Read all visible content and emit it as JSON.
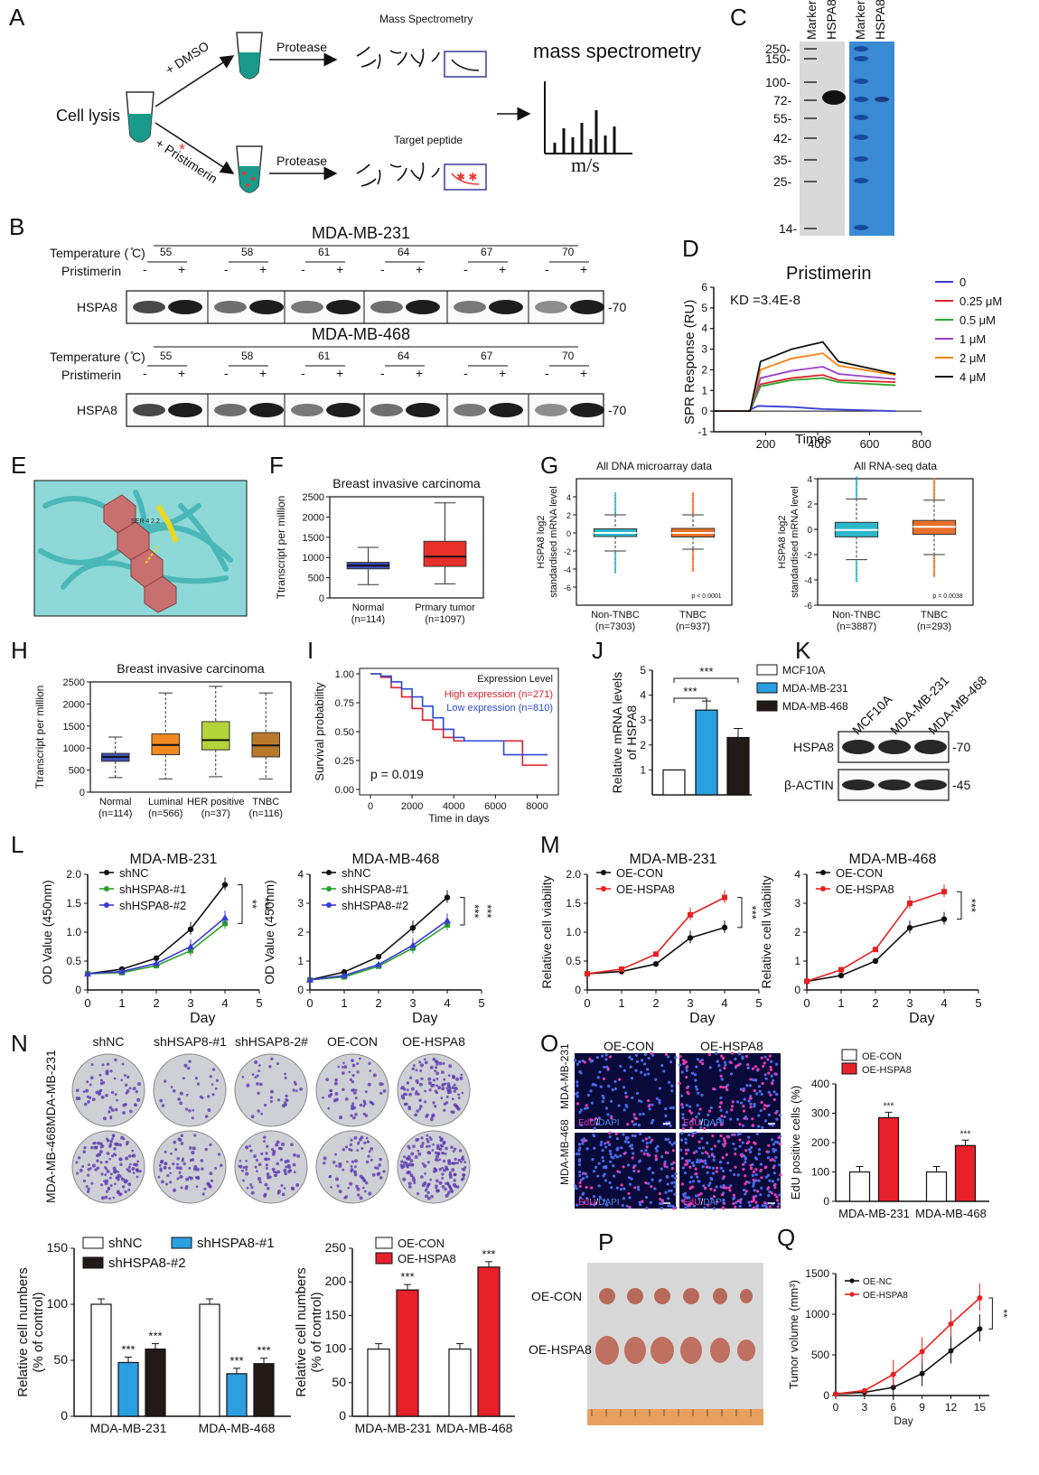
{
  "panels": {
    "A": "A",
    "B": "B",
    "C": "C",
    "D": "D",
    "E": "E",
    "F": "F",
    "G": "G",
    "H": "H",
    "I": "I",
    "J": "J",
    "K": "K",
    "L": "L",
    "M": "M",
    "N": "N",
    "O": "O",
    "P": "P",
    "Q": "Q"
  },
  "panelA": {
    "cell_lysis": "Cell lysis",
    "dmso": "+ DMSO",
    "pristimerin": "+ Pristimerin",
    "protease1": "Protease",
    "protease2": "Protease",
    "mass_spec_small": "Mass Spectrometry",
    "target_peptide": "Target peptide",
    "mass_spec_big": "mass spectrometry",
    "ms_axis": "m/s"
  },
  "panelB": {
    "cell1": "MDA-MB-231",
    "cell2": "MDA-MB-468",
    "temp_label": "Temperature ( ̊C)",
    "prist_label": "Pristimerin",
    "temps": [
      "55",
      "58",
      "61",
      "64",
      "67",
      "70"
    ],
    "minus": "-",
    "plus": "+",
    "protein": "HSPA8",
    "mw": "-70"
  },
  "panelC": {
    "lane1": "Marker",
    "lane2": "HSPA8",
    "lane3": "Marker",
    "lane4": "HSPA8",
    "ladder": [
      "250-",
      "150-",
      "100-",
      "72-",
      "55-",
      "42-",
      "35-",
      "25-",
      "14-"
    ]
  },
  "chart_data": [
    {
      "panel": "D",
      "type": "line",
      "title": "Pristimerin",
      "annotation": "KD =3.4E-8",
      "xlabel": "Times",
      "ylabel": "SPR Response (RU)",
      "xlim": [
        0,
        800
      ],
      "ylim": [
        -1,
        6
      ],
      "xticks": [
        "200",
        "400",
        "600",
        "800"
      ],
      "yticks": [
        "-1",
        "0",
        "1",
        "2",
        "3",
        "4",
        "5",
        "6"
      ],
      "series": [
        {
          "name": "0",
          "color": "#3b3bd6",
          "x": [
            0,
            130,
            170,
            300,
            420,
            700
          ],
          "y": [
            0,
            0,
            0.25,
            0.2,
            0.1,
            0
          ]
        },
        {
          "name": "0.25 μM",
          "color": "#e0202a",
          "x": [
            0,
            140,
            180,
            300,
            420,
            480,
            700
          ],
          "y": [
            0,
            0,
            1.3,
            1.6,
            1.75,
            1.5,
            1.4
          ]
        },
        {
          "name": "0.5 μM",
          "color": "#2aa82a",
          "x": [
            0,
            140,
            180,
            300,
            420,
            480,
            700
          ],
          "y": [
            0,
            0,
            1.2,
            1.5,
            1.6,
            1.4,
            1.25
          ]
        },
        {
          "name": "1 μM",
          "color": "#9b3ec9",
          "x": [
            0,
            140,
            180,
            300,
            420,
            480,
            700
          ],
          "y": [
            0,
            0,
            1.6,
            1.95,
            2.15,
            1.8,
            1.55
          ]
        },
        {
          "name": "2 μM",
          "color": "#ff7f0e",
          "x": [
            0,
            140,
            180,
            300,
            420,
            480,
            700
          ],
          "y": [
            0,
            0,
            2.0,
            2.55,
            2.8,
            2.2,
            1.75
          ]
        },
        {
          "name": "4 μM",
          "color": "#111111",
          "x": [
            0,
            140,
            180,
            300,
            420,
            480,
            700
          ],
          "y": [
            0,
            0,
            2.4,
            3.0,
            3.35,
            2.4,
            1.8
          ]
        }
      ]
    },
    {
      "panel": "F",
      "type": "box",
      "title": "Breast invasive carcinoma",
      "ylabel": "Ttranscript per million",
      "ylim": [
        0,
        2500
      ],
      "yticks": [
        "0",
        "500",
        "1000",
        "1500",
        "2000",
        "2500"
      ],
      "categories": [
        "Normal\n(n=114)",
        "Prmary tumor\n(n=1097)"
      ],
      "boxes": [
        {
          "min": 330,
          "q1": 720,
          "median": 800,
          "q3": 880,
          "max": 1250,
          "color": "#3f4fb8"
        },
        {
          "min": 350,
          "q1": 780,
          "median": 1020,
          "q3": 1400,
          "max": 2350,
          "color": "#e8302a"
        }
      ]
    },
    {
      "panel": "G1",
      "type": "box",
      "title": "All DNA microarray data",
      "ylabel": "HSPA8 log2\nstandardised mRNA level",
      "ylim": [
        -8,
        6
      ],
      "yticks": [
        "-6",
        "-4",
        "-2",
        "0",
        "2",
        "4"
      ],
      "categories": [
        "Non-TNBC\n(n=7303)",
        "TNBC\n(n=937)"
      ],
      "pvalue": "p < 0.0001",
      "boxes": [
        {
          "min": -2,
          "q1": -0.4,
          "median": 0,
          "q3": 0.45,
          "max": 2,
          "color": "#2ab7c9"
        },
        {
          "min": -1.8,
          "q1": -0.45,
          "median": 0,
          "q3": 0.5,
          "max": 2,
          "color": "#e8702a"
        }
      ]
    },
    {
      "panel": "G2",
      "type": "box",
      "title": "All RNA-seq data",
      "ylabel": "HSPA8 log2\nstandardised mRNA level",
      "ylim": [
        -6,
        4
      ],
      "yticks": [
        "-6",
        "-4",
        "-2",
        "0",
        "2",
        "4"
      ],
      "categories": [
        "Non-TNBC\n(n=3887)",
        "TNBC\n(n=293)"
      ],
      "pvalue": "p = 0.0038",
      "boxes": [
        {
          "min": -2.4,
          "q1": -0.6,
          "median": -0.05,
          "q3": 0.55,
          "max": 2.4,
          "color": "#2ab7c9"
        },
        {
          "min": -2,
          "q1": -0.4,
          "median": 0.2,
          "q3": 0.7,
          "max": 2.3,
          "color": "#e8702a"
        }
      ]
    },
    {
      "panel": "H",
      "type": "box",
      "title": "Breast invasive carcinoma",
      "ylabel": "Ttranscript per million",
      "ylim": [
        0,
        2500
      ],
      "yticks": [
        "0",
        "500",
        "1000",
        "1500",
        "2000",
        "2500"
      ],
      "categories": [
        "Normal\n(n=114)",
        "Luminal\n(n=566)",
        "HER positive\n(n=37)",
        "TNBC\n(n=116)"
      ],
      "boxes": [
        {
          "min": 330,
          "q1": 700,
          "median": 800,
          "q3": 880,
          "max": 1250,
          "color": "#3f4fb8"
        },
        {
          "min": 300,
          "q1": 850,
          "median": 1070,
          "q3": 1320,
          "max": 2250,
          "color": "#f08a20"
        },
        {
          "min": 350,
          "q1": 960,
          "median": 1180,
          "q3": 1600,
          "max": 2400,
          "color": "#b5d33a"
        },
        {
          "min": 300,
          "q1": 800,
          "median": 1060,
          "q3": 1350,
          "max": 2250,
          "color": "#b87a2a"
        }
      ]
    },
    {
      "panel": "I",
      "type": "line",
      "xlabel": "Time in days",
      "ylabel": "Survival probability",
      "xlim": [
        0,
        8500
      ],
      "ylim": [
        0,
        1
      ],
      "xticks": [
        "0",
        "2000",
        "4000",
        "6000",
        "8000"
      ],
      "yticks": [
        "0.00",
        "0.25",
        "0.50",
        "0.75",
        "1.00"
      ],
      "legend_title": "Expression Level",
      "pvalue": "p = 0.019",
      "series": [
        {
          "name": "High expression (n=271)",
          "color": "#e0202a",
          "x": [
            0,
            500,
            1000,
            1500,
            2000,
            2500,
            3000,
            3500,
            4000,
            4500,
            6300,
            7300,
            7400,
            8500
          ],
          "y": [
            1,
            0.97,
            0.88,
            0.8,
            0.7,
            0.6,
            0.52,
            0.45,
            0.42,
            0.42,
            0.42,
            0.21,
            0.21,
            0.21
          ]
        },
        {
          "name": "Low expression (n=810)",
          "color": "#2a4ad6",
          "x": [
            0,
            500,
            1000,
            1500,
            2000,
            2500,
            3000,
            3500,
            4000,
            4500,
            6300,
            6400,
            7500,
            8500
          ],
          "y": [
            1,
            0.98,
            0.93,
            0.87,
            0.8,
            0.72,
            0.62,
            0.52,
            0.45,
            0.42,
            0.42,
            0.3,
            0.3,
            0.3
          ]
        }
      ]
    },
    {
      "panel": "J",
      "type": "bar",
      "ylabel": "Relative mRNA levels\nof HSPA8",
      "ylim": [
        0,
        5
      ],
      "yticks": [
        "1",
        "2",
        "3",
        "4",
        "5"
      ],
      "categories": [
        "MCF10A",
        "MDA-MB-231",
        "MDA-MB-468"
      ],
      "values": [
        1,
        3.4,
        2.3
      ],
      "colors": [
        "#ffffff",
        "#2aa0e0",
        "#231a18"
      ],
      "sig": [
        "***",
        "***"
      ]
    },
    {
      "panel": "L1",
      "type": "line",
      "title": "MDA-MB-231",
      "xlabel": "Day",
      "ylabel": "OD Value (450nm)",
      "xlim": [
        0,
        5
      ],
      "ylim": [
        0,
        2
      ],
      "xticks": [
        "0",
        "1",
        "2",
        "3",
        "4",
        "5"
      ],
      "yticks": [
        "0",
        "0.5",
        "1.0",
        "1.5",
        "2.0"
      ],
      "sig": [
        "**",
        "***"
      ],
      "series": [
        {
          "name": "shNC",
          "color": "#111111",
          "x": [
            0,
            1,
            2,
            3,
            4
          ],
          "y": [
            0.28,
            0.36,
            0.55,
            1.05,
            1.82
          ]
        },
        {
          "name": "shHSPA8-#1",
          "color": "#2aa02a",
          "x": [
            0,
            1,
            2,
            3,
            4
          ],
          "y": [
            0.28,
            0.3,
            0.42,
            0.68,
            1.15
          ]
        },
        {
          "name": "shHSPA8-#2",
          "color": "#3a3ad6",
          "x": [
            0,
            1,
            2,
            3,
            4
          ],
          "y": [
            0.28,
            0.32,
            0.46,
            0.75,
            1.25
          ]
        }
      ]
    },
    {
      "panel": "L2",
      "type": "line",
      "title": "MDA-MB-468",
      "xlabel": "Day",
      "ylabel": "OD Value (450nm)",
      "xlim": [
        0,
        5
      ],
      "ylim": [
        0,
        4
      ],
      "xticks": [
        "0",
        "1",
        "2",
        "3",
        "4",
        "5"
      ],
      "yticks": [
        "0",
        "1",
        "2",
        "3",
        "4"
      ],
      "sig": [
        "***",
        "***"
      ],
      "series": [
        {
          "name": "shNC",
          "color": "#111111",
          "x": [
            0,
            1,
            2,
            3,
            4
          ],
          "y": [
            0.35,
            0.62,
            1.15,
            2.15,
            3.2
          ]
        },
        {
          "name": "shHSPA8-#1",
          "color": "#2aa02a",
          "x": [
            0,
            1,
            2,
            3,
            4
          ],
          "y": [
            0.35,
            0.45,
            0.82,
            1.45,
            2.25
          ]
        },
        {
          "name": "shHSPA8-#2",
          "color": "#3a3ad6",
          "x": [
            0,
            1,
            2,
            3,
            4
          ],
          "y": [
            0.35,
            0.5,
            0.88,
            1.55,
            2.4
          ]
        }
      ]
    },
    {
      "panel": "M1",
      "type": "line",
      "title": "MDA-MB-231",
      "xlabel": "Day",
      "ylabel": "Relative cell viability",
      "xlim": [
        0,
        5
      ],
      "ylim": [
        0,
        2
      ],
      "xticks": [
        "0",
        "1",
        "2",
        "3",
        "4",
        "5"
      ],
      "yticks": [
        "0",
        "0.5",
        "1.0",
        "1.5",
        "2.0"
      ],
      "sig": [
        "***"
      ],
      "series": [
        {
          "name": "OE-CON",
          "color": "#111111",
          "x": [
            0,
            1,
            2,
            3,
            4
          ],
          "y": [
            0.28,
            0.32,
            0.45,
            0.9,
            1.08
          ]
        },
        {
          "name": "OE-HSPA8",
          "color": "#e82020",
          "x": [
            0,
            1,
            2,
            3,
            4
          ],
          "y": [
            0.28,
            0.36,
            0.62,
            1.3,
            1.6
          ]
        }
      ]
    },
    {
      "panel": "M2",
      "type": "line",
      "title": "MDA-MB-468",
      "xlabel": "Day",
      "ylabel": "Relative cell viability",
      "xlim": [
        0,
        5
      ],
      "ylim": [
        0,
        4
      ],
      "xticks": [
        "0",
        "1",
        "2",
        "3",
        "4",
        "5"
      ],
      "yticks": [
        "0",
        "1",
        "2",
        "3",
        "4"
      ],
      "sig": [
        "***"
      ],
      "series": [
        {
          "name": "OE-CON",
          "color": "#111111",
          "x": [
            0,
            1,
            2,
            3,
            4
          ],
          "y": [
            0.3,
            0.5,
            1.0,
            2.15,
            2.45
          ]
        },
        {
          "name": "OE-HSPA8",
          "color": "#e82020",
          "x": [
            0,
            1,
            2,
            3,
            4
          ],
          "y": [
            0.3,
            0.7,
            1.4,
            3.0,
            3.4
          ]
        }
      ]
    },
    {
      "panel": "O",
      "type": "bar",
      "ylabel": "EdU positive cells (%)",
      "ylim": [
        0,
        400
      ],
      "yticks": [
        "0",
        "100",
        "200",
        "300",
        "400"
      ],
      "categories": [
        "MDA-MB-231",
        "MDA-MB-468"
      ],
      "series": [
        {
          "name": "OE-CON",
          "color": "#ffffff",
          "values": [
            100,
            100
          ]
        },
        {
          "name": "OE-HSPA8",
          "color": "#e8202a",
          "values": [
            285,
            190
          ]
        }
      ],
      "sig": [
        "***",
        "***"
      ]
    },
    {
      "panel": "N1",
      "type": "bar",
      "ylabel": "Relative cell numbers\n(% of control)",
      "ylim": [
        0,
        150
      ],
      "yticks": [
        "0",
        "50",
        "100",
        "150"
      ],
      "categories": [
        "MDA-MB-231",
        "MDA-MB-468"
      ],
      "series": [
        {
          "name": "shNC",
          "color": "#ffffff",
          "values": [
            100,
            100
          ]
        },
        {
          "name": "shHSPA8-#1",
          "color": "#2aa0e0",
          "values": [
            48,
            38
          ]
        },
        {
          "name": "shHSPA8-#2",
          "color": "#231a18",
          "values": [
            60,
            47
          ]
        }
      ],
      "sig": [
        "***",
        "***",
        "***",
        "***"
      ]
    },
    {
      "panel": "N2",
      "type": "bar",
      "ylabel": "Relative cell numbers\n(% of control)",
      "ylim": [
        0,
        250
      ],
      "yticks": [
        "0",
        "50",
        "100",
        "150",
        "200",
        "250"
      ],
      "categories": [
        "MDA-MB-231",
        "MDA-MB-468"
      ],
      "series": [
        {
          "name": "OE-CON",
          "color": "#ffffff",
          "values": [
            100,
            100
          ]
        },
        {
          "name": "OE-HSPA8",
          "color": "#e8202a",
          "values": [
            188,
            222
          ]
        }
      ],
      "sig": [
        "***",
        "***"
      ]
    },
    {
      "panel": "Q",
      "type": "line",
      "xlabel": "Day",
      "ylabel": "Tumor volume (mm³)",
      "xlim": [
        0,
        16
      ],
      "ylim": [
        0,
        1500
      ],
      "xticks": [
        "0",
        "3",
        "6",
        "9",
        "12",
        "15"
      ],
      "yticks": [
        "0",
        "500",
        "1000",
        "1500"
      ],
      "sig": [
        "**"
      ],
      "series": [
        {
          "name": "OE-NC",
          "color": "#111111",
          "x": [
            0,
            3,
            6,
            9,
            12,
            15
          ],
          "y": [
            20,
            40,
            100,
            270,
            550,
            820
          ]
        },
        {
          "name": "OE-HSPA8",
          "color": "#e82020",
          "x": [
            0,
            3,
            6,
            9,
            12,
            15
          ],
          "y": [
            20,
            60,
            260,
            540,
            880,
            1200
          ]
        }
      ]
    }
  ],
  "panelK": {
    "lanes": [
      "MCF10A",
      "MDA-MB-231",
      "MDA-MB-468"
    ],
    "rows": [
      "HSPA8",
      "β-ACTIN"
    ],
    "mw": [
      "-70",
      "-45"
    ]
  },
  "panelN": {
    "cols": [
      "shNC",
      "shHSAP8-#1",
      "shHSAP8-2#",
      "OE-CON",
      "OE-HSPA8"
    ],
    "rows": [
      "MDA-MB-231",
      "MDA-MB-468"
    ]
  },
  "panelO": {
    "cols": [
      "OE-CON",
      "OE-HSPA8"
    ],
    "rows": [
      "MDA-MB-231",
      "MDA-MB-468"
    ],
    "stain1": "EdU",
    "stain2": "DAPI",
    "sep": "/"
  },
  "panelP": {
    "rows": [
      "OE-CON",
      "OE-HSPA8"
    ]
  },
  "panelE": {
    "annotation": "SER 4 2.2"
  }
}
